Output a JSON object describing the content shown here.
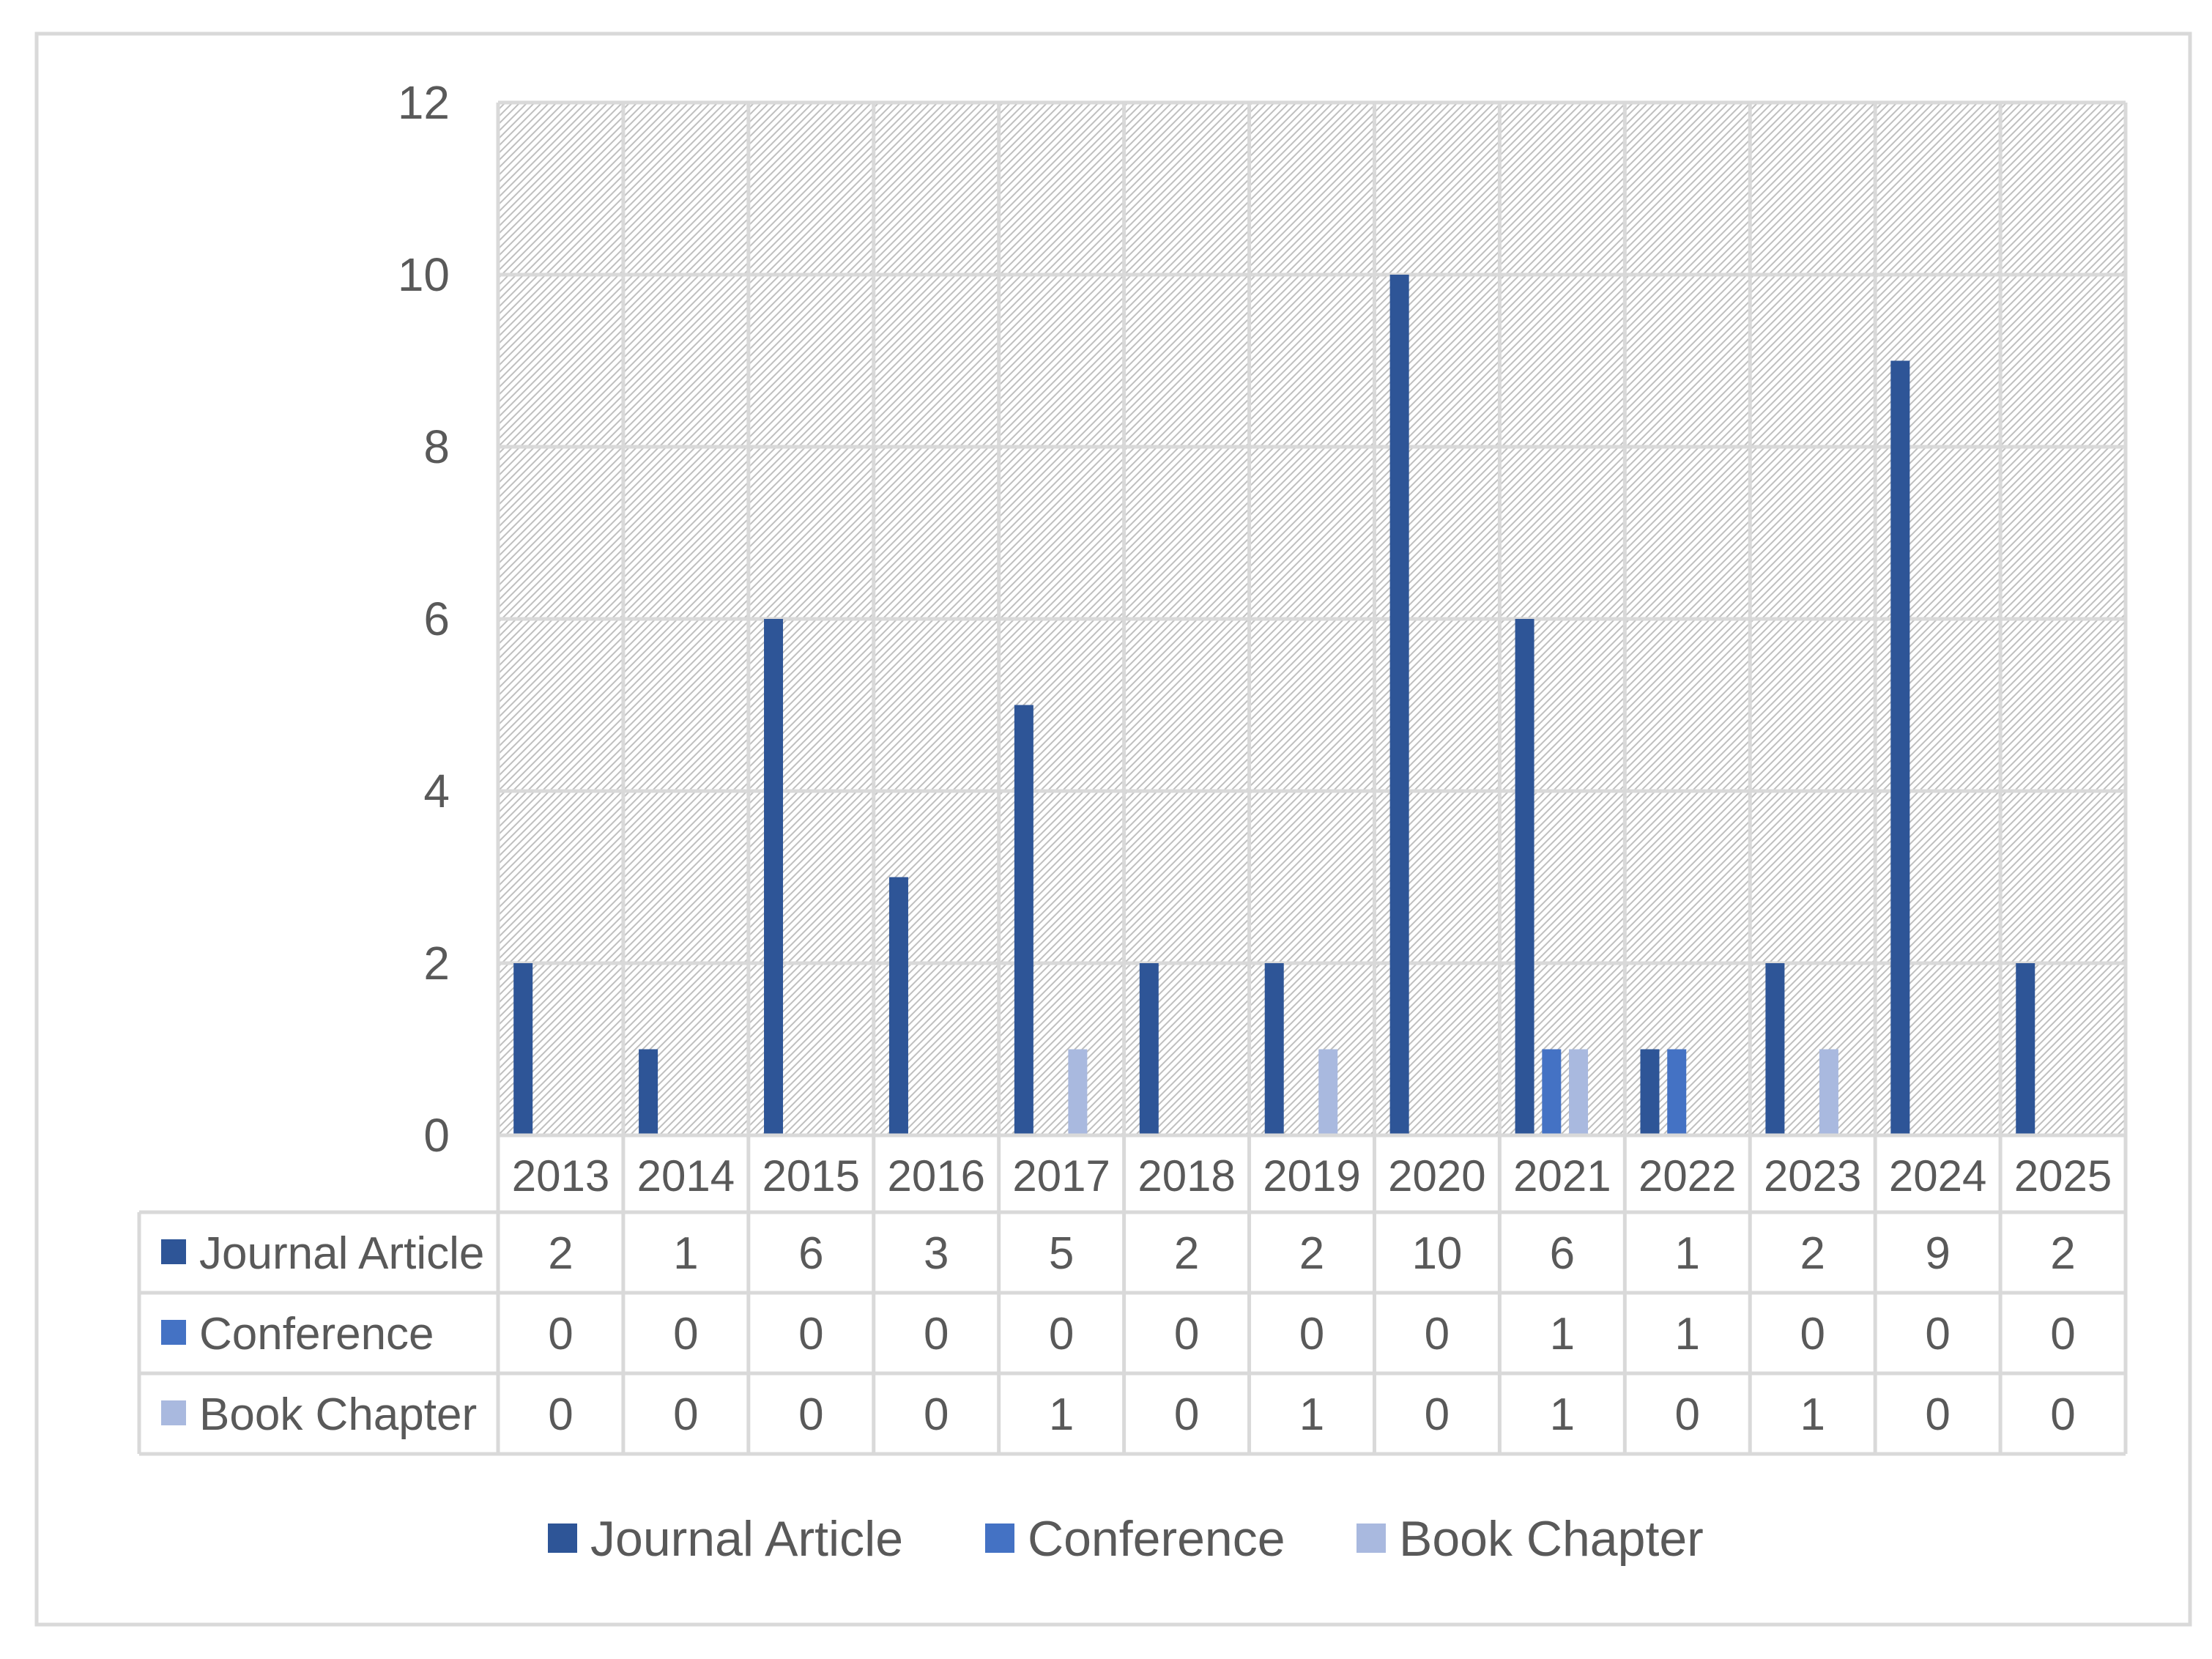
{
  "chart_data": {
    "type": "bar",
    "categories": [
      "2013",
      "2014",
      "2015",
      "2016",
      "2017",
      "2018",
      "2019",
      "2020",
      "2021",
      "2022",
      "2023",
      "2024",
      "2025"
    ],
    "series": [
      {
        "name": "Journal Article",
        "values": [
          2,
          1,
          6,
          3,
          5,
          2,
          2,
          10,
          6,
          1,
          2,
          9,
          2
        ]
      },
      {
        "name": "Conference",
        "values": [
          0,
          0,
          0,
          0,
          0,
          0,
          0,
          0,
          1,
          1,
          0,
          0,
          0
        ]
      },
      {
        "name": "Book Chapter",
        "values": [
          0,
          0,
          0,
          0,
          1,
          0,
          1,
          0,
          1,
          0,
          1,
          0,
          0
        ]
      }
    ],
    "ylim": [
      0,
      12
    ],
    "yticks": [
      0,
      2,
      4,
      6,
      8,
      10,
      12
    ],
    "grid": true,
    "legend": "bottom",
    "data_table": true,
    "colors": {
      "Journal Article": "#2E5597",
      "Conference": "#4472C4",
      "Book Chapter": "#A9B9DF",
      "grid": "#D9D9D9",
      "frame": "#D9D9D9",
      "text": "#595959"
    }
  }
}
